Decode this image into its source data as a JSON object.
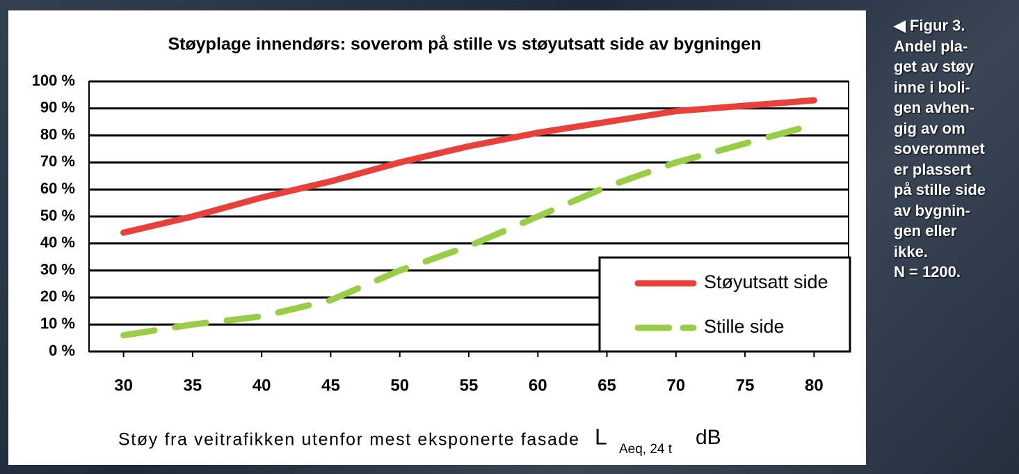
{
  "chart_data": {
    "type": "line",
    "title": "Støyplage innendørs: soverom på stille vs støyutsatt side av bygningen",
    "x_label": "Støy fra veitrafikken utenfor mest eksponerte fasade",
    "x_unit_symbol": "L",
    "x_unit_subscript": "Aeq, 24 t",
    "x_unit": "dB",
    "x": [
      30,
      35,
      40,
      45,
      50,
      55,
      60,
      65,
      70,
      75,
      80
    ],
    "series": [
      {
        "name": "Støyutsatt side",
        "color": "#e8403a",
        "dashed": false,
        "values": [
          44,
          50,
          57,
          63,
          70,
          76,
          81,
          85,
          89,
          91,
          93
        ]
      },
      {
        "name": "Stille side",
        "color": "#9acd47",
        "dashed": true,
        "values": [
          6,
          10,
          13,
          19,
          30,
          39,
          50,
          61,
          70,
          77,
          84
        ]
      }
    ],
    "xlim": [
      27.5,
      82.5
    ],
    "xticks": [
      30,
      35,
      40,
      45,
      50,
      55,
      60,
      65,
      70,
      75,
      80
    ],
    "ylim": [
      0,
      100
    ],
    "yticks": [
      {
        "value": 0,
        "label": "0 %"
      },
      {
        "value": 10,
        "label": "10 %"
      },
      {
        "value": 20,
        "label": "20 %"
      },
      {
        "value": 30,
        "label": "30 %"
      },
      {
        "value": 40,
        "label": "40 %"
      },
      {
        "value": 50,
        "label": "50 %"
      },
      {
        "value": 60,
        "label": "60 %"
      },
      {
        "value": 70,
        "label": "70 %"
      },
      {
        "value": 80,
        "label": "80 %"
      },
      {
        "value": 90,
        "label": "90 %"
      },
      {
        "value": 100,
        "label": "100 %"
      }
    ],
    "grid": true,
    "legend": "lower-right"
  },
  "side_caption": [
    "◀ Figur 3.",
    "Andel pla-",
    "get av støy",
    "inne i boli-",
    "gen avhen-",
    "gig av om",
    "soverommet",
    "er plassert",
    "på stille side",
    "av bygnin-",
    "gen eller",
    "ikke.",
    "N = 1200."
  ]
}
